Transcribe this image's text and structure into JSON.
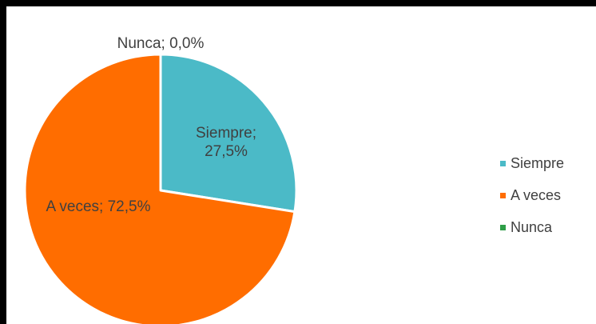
{
  "chart_data": {
    "type": "pie",
    "categories": [
      "Siempre",
      "A veces",
      "Nunca"
    ],
    "values": [
      27.5,
      72.5,
      0.0
    ],
    "colors": [
      "#4bbac7",
      "#ff6d00",
      "#2e9e48"
    ],
    "data_labels": [
      "Siempre;\n27,5%",
      "A veces; 72,5%",
      "Nunca; 0,0%"
    ],
    "legend": {
      "position": "right",
      "entries": [
        "Siempre",
        "A veces",
        "Nunca"
      ]
    },
    "title": ""
  }
}
